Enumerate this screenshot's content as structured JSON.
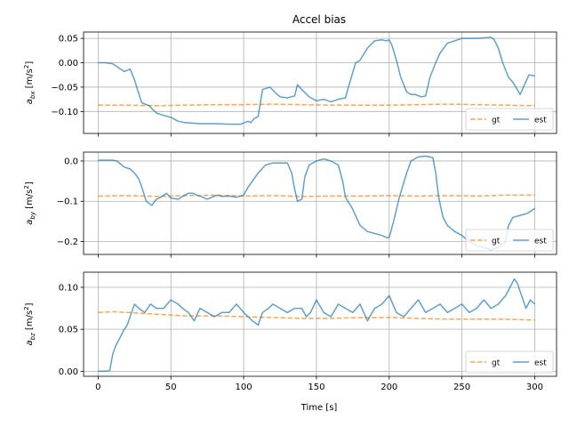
{
  "chart_data": {
    "type": "line",
    "title": "Accel bias",
    "xlabel": "Time [s]",
    "xlim": [
      -10,
      315
    ],
    "xticks": [
      0,
      50,
      100,
      150,
      200,
      250,
      300
    ],
    "xtick_labels": [
      "0",
      "50",
      "100",
      "150",
      "200",
      "250",
      "300"
    ],
    "legend_location": "lower-right",
    "colors": {
      "gt": "#ff7f0e",
      "est": "#1f77b4"
    },
    "grid": true,
    "subplots": [
      {
        "ylabel_main": "a",
        "ylabel_sub": "bx",
        "ylabel_unit_pre": "[m/s",
        "ylabel_unit_sup": "2",
        "ylabel_unit_post": "]",
        "ylim": [
          -0.145,
          0.063
        ],
        "yticks": [
          0.05,
          0.0,
          -0.05,
          -0.1
        ],
        "ytick_labels": [
          "0.05",
          "0.00",
          "−0.05",
          "−0.10"
        ],
        "series": [
          {
            "name": "gt",
            "style": "dashed",
            "x": [
              0,
              20,
              40,
              60,
              80,
              100,
              120,
              140,
              160,
              180,
              200,
              220,
              240,
              260,
              280,
              300
            ],
            "y": [
              -0.087,
              -0.087,
              -0.088,
              -0.087,
              -0.086,
              -0.086,
              -0.085,
              -0.086,
              -0.087,
              -0.087,
              -0.087,
              -0.086,
              -0.085,
              -0.086,
              -0.087,
              -0.088
            ]
          },
          {
            "name": "est",
            "style": "solid",
            "x": [
              0,
              5,
              10,
              15,
              18,
              22,
              25,
              27,
              30,
              35,
              40,
              45,
              50,
              55,
              60,
              70,
              80,
              90,
              98,
              103,
              105,
              107,
              110,
              113,
              118,
              122,
              125,
              130,
              135,
              137,
              140,
              145,
              150,
              155,
              160,
              165,
              170,
              172,
              175,
              177,
              180,
              185,
              190,
              195,
              198,
              200,
              202,
              205,
              208,
              212,
              215,
              218,
              222,
              225,
              228,
              232,
              235,
              240,
              245,
              250,
              255,
              260,
              265,
              270,
              272,
              275,
              278,
              282,
              285,
              287,
              290,
              293,
              296,
              300
            ],
            "y": [
              0.0,
              0.0,
              -0.002,
              -0.012,
              -0.018,
              -0.013,
              -0.035,
              -0.055,
              -0.082,
              -0.088,
              -0.103,
              -0.108,
              -0.112,
              -0.12,
              -0.123,
              -0.125,
              -0.125,
              -0.126,
              -0.126,
              -0.12,
              -0.123,
              -0.115,
              -0.11,
              -0.055,
              -0.05,
              -0.062,
              -0.07,
              -0.072,
              -0.068,
              -0.045,
              -0.055,
              -0.07,
              -0.078,
              -0.075,
              -0.08,
              -0.075,
              -0.072,
              -0.05,
              -0.02,
              0.0,
              0.005,
              0.03,
              0.045,
              0.047,
              0.045,
              0.047,
              0.035,
              0.005,
              -0.03,
              -0.06,
              -0.065,
              -0.065,
              -0.07,
              -0.068,
              -0.03,
              0.0,
              0.02,
              0.04,
              0.045,
              0.05,
              0.05,
              0.05,
              0.051,
              0.052,
              0.048,
              0.03,
              0.0,
              -0.03,
              -0.04,
              -0.05,
              -0.065,
              -0.045,
              -0.025,
              -0.027
            ]
          }
        ]
      },
      {
        "ylabel_main": "a",
        "ylabel_sub": "by",
        "ylabel_unit_pre": "[m/s",
        "ylabel_unit_sup": "2",
        "ylabel_unit_post": "]",
        "ylim": [
          -0.232,
          0.022
        ],
        "yticks": [
          0.0,
          -0.1,
          -0.2
        ],
        "ytick_labels": [
          "0.0",
          "−0.1",
          "−0.2"
        ],
        "series": [
          {
            "name": "gt",
            "style": "dashed",
            "x": [
              0,
              20,
              40,
              60,
              80,
              100,
              120,
              140,
              160,
              180,
              200,
              220,
              240,
              260,
              280,
              300
            ],
            "y": [
              -0.087,
              -0.086,
              -0.088,
              -0.086,
              -0.085,
              -0.087,
              -0.086,
              -0.088,
              -0.087,
              -0.087,
              -0.086,
              -0.087,
              -0.086,
              -0.087,
              -0.085,
              -0.085
            ]
          },
          {
            "name": "est",
            "style": "solid",
            "x": [
              0,
              5,
              10,
              13,
              18,
              22,
              25,
              28,
              30,
              33,
              37,
              40,
              43,
              47,
              50,
              55,
              58,
              62,
              65,
              68,
              72,
              75,
              78,
              82,
              85,
              90,
              95,
              100,
              103,
              107,
              110,
              115,
              120,
              125,
              130,
              133,
              135,
              137,
              140,
              142,
              145,
              150,
              155,
              160,
              165,
              168,
              170,
              175,
              180,
              185,
              190,
              195,
              198,
              200,
              203,
              207,
              212,
              215,
              220,
              225,
              228,
              230,
              232,
              234,
              237,
              240,
              245,
              250,
              255,
              260,
              265,
              270,
              275,
              280,
              282,
              285,
              290,
              295,
              300
            ],
            "y": [
              0.002,
              0.002,
              0.002,
              0.0,
              -0.015,
              -0.02,
              -0.03,
              -0.045,
              -0.065,
              -0.1,
              -0.11,
              -0.095,
              -0.09,
              -0.08,
              -0.092,
              -0.095,
              -0.088,
              -0.08,
              -0.08,
              -0.085,
              -0.09,
              -0.095,
              -0.09,
              -0.085,
              -0.088,
              -0.087,
              -0.09,
              -0.085,
              -0.065,
              -0.045,
              -0.03,
              -0.01,
              -0.005,
              -0.005,
              -0.005,
              -0.03,
              -0.07,
              -0.1,
              -0.095,
              -0.04,
              -0.01,
              0.0,
              0.005,
              0.0,
              -0.01,
              -0.05,
              -0.09,
              -0.12,
              -0.16,
              -0.175,
              -0.18,
              -0.185,
              -0.19,
              -0.19,
              -0.15,
              -0.09,
              -0.03,
              0.0,
              0.01,
              0.012,
              0.01,
              0.008,
              -0.03,
              -0.09,
              -0.14,
              -0.16,
              -0.175,
              -0.185,
              -0.2,
              -0.21,
              -0.215,
              -0.22,
              -0.215,
              -0.2,
              -0.16,
              -0.14,
              -0.135,
              -0.13,
              -0.118
            ]
          }
        ]
      },
      {
        "ylabel_main": "a",
        "ylabel_sub": "bz",
        "ylabel_unit_pre": "[m/s",
        "ylabel_unit_sup": "2",
        "ylabel_unit_post": "]",
        "ylim": [
          -0.006,
          0.118
        ],
        "yticks": [
          0.1,
          0.05,
          0.0
        ],
        "ytick_labels": [
          "0.10",
          "0.05",
          "0.00"
        ],
        "series": [
          {
            "name": "gt",
            "style": "dashed",
            "x": [
              0,
              10,
              20,
              30,
              40,
              60,
              80,
              100,
              120,
              140,
              160,
              180,
              200,
              220,
              240,
              260,
              280,
              300
            ],
            "y": [
              0.07,
              0.071,
              0.07,
              0.069,
              0.068,
              0.066,
              0.066,
              0.065,
              0.064,
              0.063,
              0.063,
              0.064,
              0.064,
              0.063,
              0.062,
              0.062,
              0.062,
              0.061
            ]
          },
          {
            "name": "est",
            "style": "solid",
            "x": [
              0,
              3,
              6,
              8,
              10,
              12,
              15,
              18,
              20,
              23,
              25,
              28,
              32,
              36,
              40,
              45,
              50,
              55,
              58,
              62,
              66,
              70,
              75,
              80,
              85,
              90,
              95,
              100,
              103,
              106,
              110,
              113,
              117,
              120,
              125,
              130,
              135,
              140,
              143,
              146,
              150,
              155,
              160,
              165,
              170,
              175,
              180,
              185,
              190,
              195,
              200,
              205,
              210,
              215,
              220,
              225,
              230,
              235,
              240,
              245,
              250,
              255,
              260,
              265,
              270,
              275,
              280,
              283,
              286,
              288,
              291,
              294,
              297,
              300
            ],
            "y": [
              0.0,
              0.0,
              0.0,
              0.001,
              0.02,
              0.03,
              0.04,
              0.05,
              0.055,
              0.07,
              0.08,
              0.075,
              0.07,
              0.08,
              0.075,
              0.075,
              0.085,
              0.08,
              0.075,
              0.07,
              0.06,
              0.075,
              0.07,
              0.065,
              0.07,
              0.07,
              0.08,
              0.07,
              0.065,
              0.06,
              0.055,
              0.07,
              0.075,
              0.08,
              0.075,
              0.07,
              0.075,
              0.075,
              0.065,
              0.07,
              0.085,
              0.07,
              0.065,
              0.08,
              0.075,
              0.07,
              0.08,
              0.06,
              0.075,
              0.08,
              0.09,
              0.07,
              0.065,
              0.075,
              0.085,
              0.07,
              0.075,
              0.08,
              0.07,
              0.075,
              0.08,
              0.07,
              0.075,
              0.085,
              0.075,
              0.08,
              0.09,
              0.1,
              0.11,
              0.105,
              0.09,
              0.075,
              0.085,
              0.08
            ]
          }
        ]
      }
    ]
  }
}
